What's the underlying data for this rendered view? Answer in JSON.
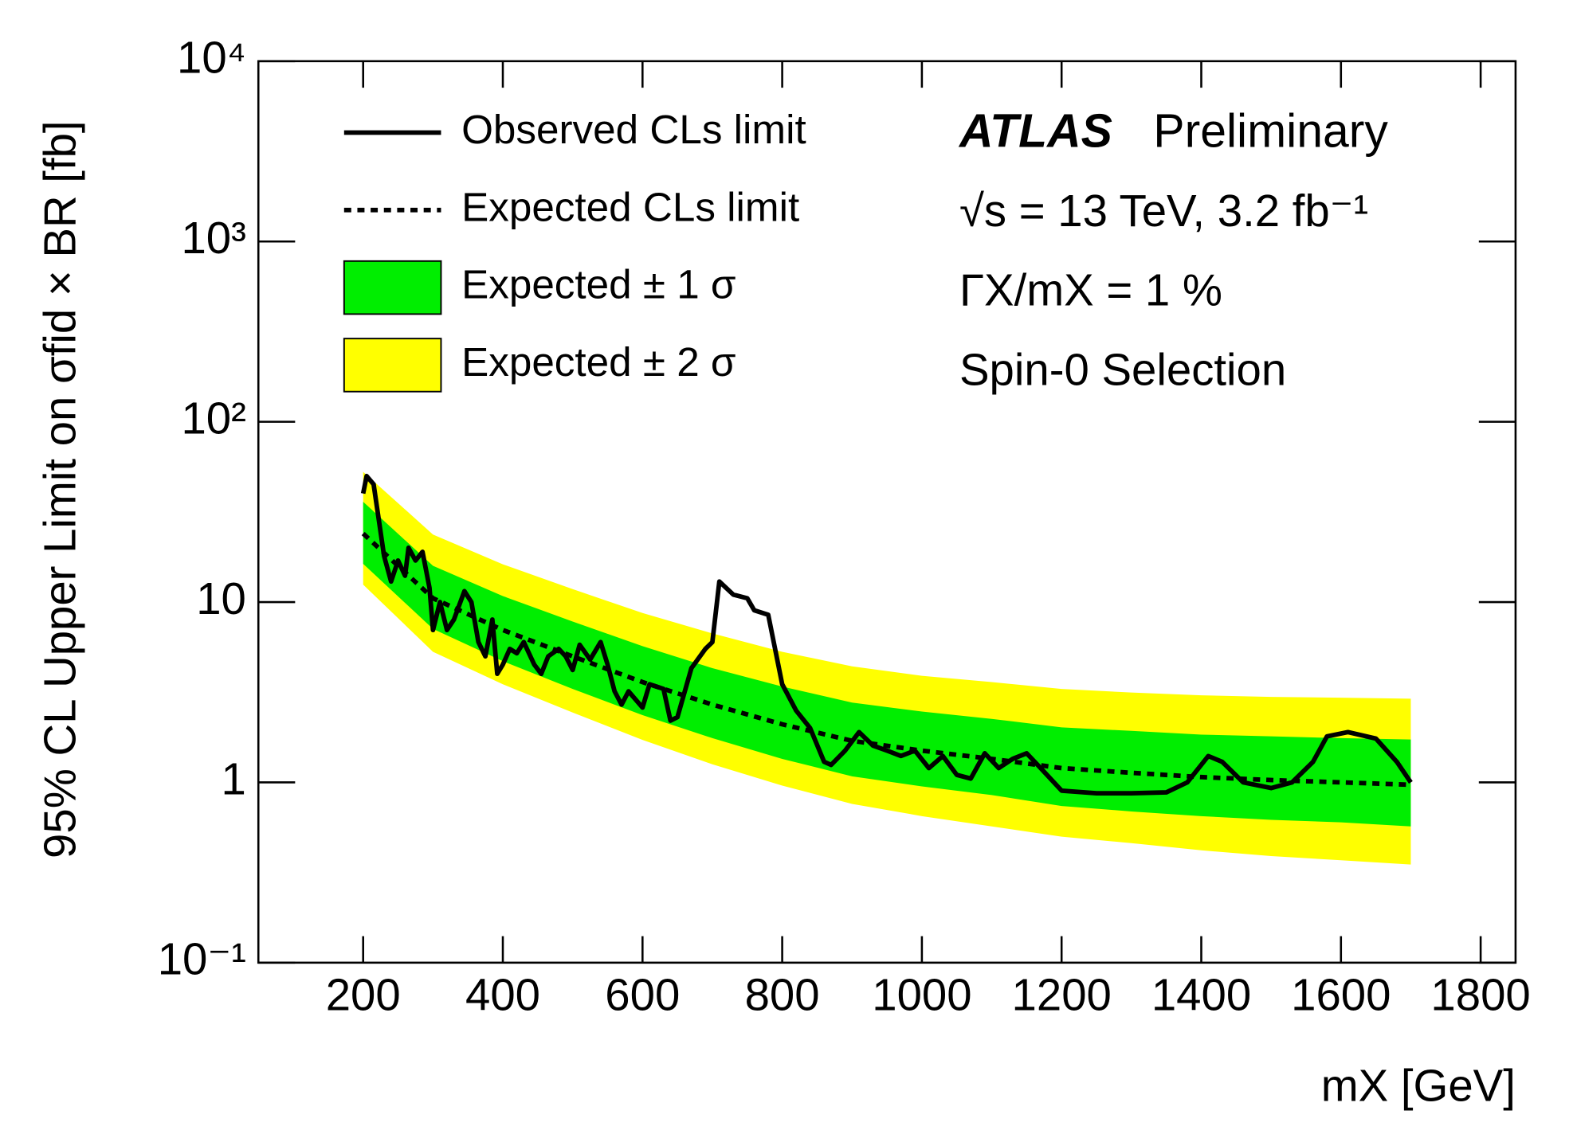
{
  "chart_data": {
    "type": "line",
    "yscale": "log",
    "xlabel": "mX [GeV]",
    "ylabel": "95% CL Upper Limit on σfid × BR [fb]",
    "xlim": [
      50,
      1850
    ],
    "xticks": [
      200,
      400,
      600,
      800,
      1000,
      1200,
      1400,
      1600,
      1800
    ],
    "ylim": [
      0.1,
      10000
    ],
    "yticks": [
      {
        "value": 0.1,
        "label": "10⁻¹"
      },
      1,
      10,
      {
        "value": 100,
        "label": "10²"
      },
      {
        "value": 1000,
        "label": "10³"
      },
      {
        "value": 10000,
        "label": "10⁴"
      }
    ],
    "annotations": [
      "ATLAS",
      "Preliminary",
      "√s = 13 TeV, 3.2 fb⁻¹",
      "ΓX/mX = 1 %",
      "Spin-0 Selection"
    ],
    "bands": [
      {
        "name": "Expected ± 2 σ",
        "color": "#ffff00",
        "x": [
          200,
          300,
          400,
          500,
          600,
          700,
          800,
          900,
          1000,
          1100,
          1200,
          1300,
          1400,
          1500,
          1600,
          1700
        ],
        "lower": [
          12.5,
          5.3,
          3.5,
          2.44,
          1.72,
          1.26,
          0.96,
          0.76,
          0.65,
          0.57,
          0.5,
          0.46,
          0.42,
          0.39,
          0.37,
          0.35
        ],
        "upper": [
          52.8,
          23.7,
          16.2,
          11.8,
          8.7,
          6.7,
          5.3,
          4.4,
          3.9,
          3.6,
          3.3,
          3.15,
          3.04,
          2.98,
          2.95,
          2.91
        ]
      },
      {
        "name": "Expected ± 1 σ",
        "color": "#00ee00",
        "x": [
          200,
          300,
          400,
          500,
          600,
          700,
          800,
          900,
          1000,
          1100,
          1200,
          1300,
          1400,
          1500,
          1600,
          1700
        ],
        "lower": [
          16.3,
          7.1,
          4.7,
          3.3,
          2.36,
          1.76,
          1.35,
          1.08,
          0.95,
          0.85,
          0.74,
          0.69,
          0.65,
          0.62,
          0.6,
          0.57
        ],
        "upper": [
          36,
          15.9,
          10.8,
          7.8,
          5.7,
          4.3,
          3.4,
          2.77,
          2.47,
          2.25,
          2.02,
          1.93,
          1.84,
          1.8,
          1.76,
          1.73
        ]
      }
    ],
    "series": [
      {
        "name": "Observed CLs limit",
        "color": "#000000",
        "style": "solid",
        "x": [
          200,
          205,
          215,
          230,
          240,
          250,
          260,
          265,
          275,
          285,
          295,
          300,
          310,
          320,
          330,
          345,
          355,
          365,
          375,
          385,
          392,
          400,
          410,
          420,
          430,
          445,
          455,
          465,
          480,
          490,
          500,
          510,
          525,
          540,
          550,
          560,
          570,
          580,
          600,
          610,
          630,
          640,
          650,
          670,
          690,
          700,
          710,
          730,
          750,
          760,
          780,
          800,
          820,
          840,
          860,
          870,
          890,
          910,
          930,
          950,
          970,
          990,
          1010,
          1030,
          1050,
          1070,
          1090,
          1110,
          1130,
          1150,
          1170,
          1200,
          1250,
          1300,
          1350,
          1380,
          1410,
          1430,
          1460,
          1500,
          1530,
          1560,
          1580,
          1610,
          1650,
          1680,
          1700
        ],
        "values": [
          40,
          50,
          45,
          18,
          13,
          17,
          14,
          20,
          17,
          19,
          12,
          7,
          10,
          7,
          8,
          11.5,
          10,
          6,
          5,
          8,
          4,
          4.5,
          5.5,
          5.2,
          6,
          4.5,
          4,
          5,
          5.5,
          5,
          4.2,
          5.8,
          4.8,
          6,
          4.5,
          3.2,
          2.7,
          3.2,
          2.6,
          3.5,
          3.3,
          2.2,
          2.3,
          4.3,
          5.5,
          6,
          13,
          11,
          10.5,
          9,
          8.5,
          3.5,
          2.5,
          2,
          1.3,
          1.25,
          1.5,
          1.9,
          1.6,
          1.5,
          1.4,
          1.5,
          1.2,
          1.4,
          1.1,
          1.05,
          1.45,
          1.2,
          1.35,
          1.45,
          1.2,
          0.9,
          0.87,
          0.87,
          0.88,
          1.0,
          1.4,
          1.3,
          1.0,
          0.93,
          1.0,
          1.3,
          1.8,
          1.9,
          1.75,
          1.3,
          1.0
        ]
      },
      {
        "name": "Expected CLs limit",
        "color": "#000000",
        "style": "dotted",
        "x": [
          200,
          300,
          400,
          500,
          600,
          700,
          800,
          900,
          1000,
          1100,
          1200,
          1300,
          1400,
          1500,
          1600,
          1700
        ],
        "values": [
          24,
          10.5,
          7,
          5,
          3.6,
          2.7,
          2.1,
          1.7,
          1.5,
          1.35,
          1.2,
          1.13,
          1.07,
          1.03,
          1.0,
          0.97
        ]
      }
    ]
  }
}
